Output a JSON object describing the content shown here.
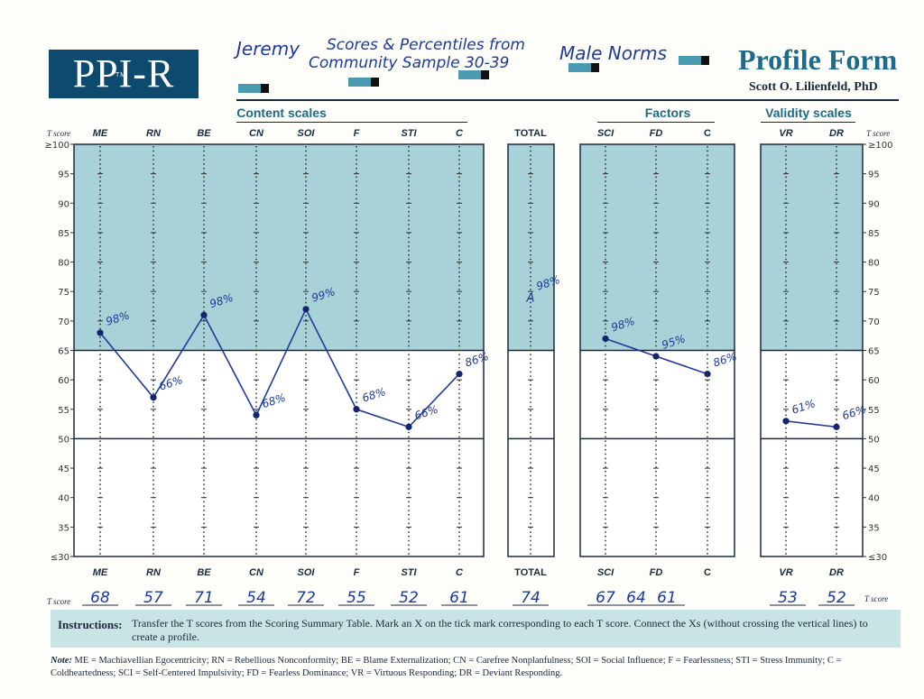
{
  "header": {
    "logo": "PPI-R",
    "trademark": "TM",
    "title": "Profile Form",
    "author": "Scott O. Lilienfeld, PhD",
    "handwriting": {
      "name": "Jeremy",
      "description_1": "Scores & Percentiles from",
      "description_2": "Community Sample 30-39",
      "norms": "Male Norms"
    }
  },
  "groups": {
    "content": "Content scales",
    "total": "TOTAL",
    "factors": "Factors",
    "validity": "Validity scales"
  },
  "tscore_label": "T score",
  "instructions": {
    "heading": "Instructions:",
    "text": "Transfer the T scores from the Scoring Summary Table. Mark an X on the tick mark corresponding to each T score. Connect the Xs (without crossing the vertical lines) to create a profile."
  },
  "note": {
    "heading": "Note:",
    "text": "ME = Machiavellian Egocentricity; RN = Rebellious Nonconformity; BE = Blame Externalization; CN = Carefree Nonplanfulness; SOI = Social Influence; F = Fearlessness; STI = Stress Immunity; C = Coldheartedness; SCI = Self-Centered Impulsivity; FD = Fearless Dominance; VR = Virtuous Responding; DR = Deviant Responding."
  },
  "colors": {
    "shade": "#a8d2d8",
    "ink": "#1f3a9a",
    "accent": "#1c6a8c"
  },
  "chart_data": {
    "type": "line",
    "title": "PPI-R Profile",
    "ylabel": "T score",
    "ylim": [
      30,
      100
    ],
    "y_ticks": [
      "≥100",
      "95",
      "90",
      "85",
      "80",
      "75",
      "70",
      "65",
      "60",
      "55",
      "50",
      "45",
      "40",
      "35",
      "≤30"
    ],
    "shaded_above": 65,
    "reference_line": 50,
    "panels": [
      {
        "name": "Content scales",
        "categories": [
          "ME",
          "RN",
          "BE",
          "CN",
          "SOI",
          "F",
          "STI",
          "C"
        ],
        "values": [
          68,
          57,
          71,
          54,
          72,
          55,
          52,
          61
        ],
        "score_text": [
          "68",
          "57",
          "71",
          "54",
          "72",
          "55",
          "52",
          "61"
        ],
        "percentiles": [
          "98%",
          "66%",
          "98%",
          "68%",
          "99%",
          "68%",
          "66%",
          "86%"
        ],
        "connected": true
      },
      {
        "name": "TOTAL",
        "categories": [
          "TOTAL"
        ],
        "values": [
          74
        ],
        "score_text": [
          "74"
        ],
        "percentiles": [
          "98%"
        ],
        "connected": false
      },
      {
        "name": "Factors",
        "categories": [
          "SCI",
          "FD",
          "C"
        ],
        "values": [
          67,
          64,
          61
        ],
        "score_text": [
          "67",
          "64",
          "61"
        ],
        "percentiles": [
          "98%",
          "95%",
          "86%"
        ],
        "connected": true
      },
      {
        "name": "Validity scales",
        "categories": [
          "VR",
          "DR"
        ],
        "values": [
          53,
          52
        ],
        "score_text": [
          "53",
          "52"
        ],
        "percentiles": [
          "61%",
          "66%"
        ],
        "connected": true
      }
    ]
  }
}
